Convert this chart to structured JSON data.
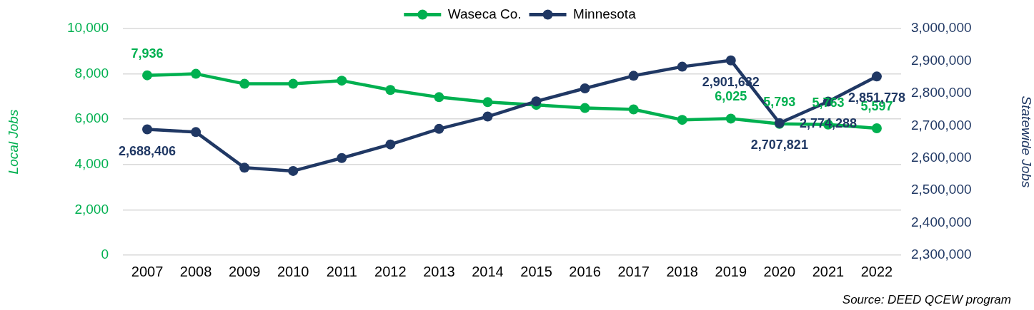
{
  "chart_data": {
    "type": "line",
    "categories": [
      "2007",
      "2008",
      "2009",
      "2010",
      "2011",
      "2012",
      "2013",
      "2014",
      "2015",
      "2016",
      "2017",
      "2018",
      "2019",
      "2020",
      "2021",
      "2022"
    ],
    "series": [
      {
        "name": "Waseca Co.",
        "color": "#00b050",
        "values": [
          7936,
          8000,
          7560,
          7560,
          7700,
          7290,
          6970,
          6750,
          6630,
          6490,
          6430,
          5970,
          6025,
          5793,
          5763,
          5597
        ],
        "value_labels": [
          "7,936",
          null,
          null,
          null,
          null,
          null,
          null,
          null,
          null,
          null,
          null,
          null,
          "6,025",
          "5,793",
          "5,763",
          "5,597"
        ]
      },
      {
        "name": "Minnesota",
        "color": "#203864",
        "axis": "y2",
        "values": [
          2688406,
          2680000,
          2570000,
          2560000,
          2600000,
          2642000,
          2690000,
          2728000,
          2775000,
          2815000,
          2854000,
          2882000,
          2901632,
          2707821,
          2774288,
          2851778
        ],
        "value_labels": [
          "2,688,406",
          null,
          null,
          null,
          null,
          null,
          null,
          null,
          null,
          null,
          null,
          null,
          "2,901,632",
          "2,707,821",
          "2,774,288",
          "2,851,778"
        ]
      }
    ],
    "ylabel": "Local Jobs",
    "y2label": "Statewide Jobs",
    "ylim": [
      0,
      10000
    ],
    "yticks": [
      0,
      {
        "value": 2000,
        "label": "2,000"
      },
      {
        "value": 4000,
        "label": "4,000"
      },
      {
        "value": 6000,
        "label": "6,000"
      },
      {
        "value": 8000,
        "label": "8,000"
      },
      {
        "value": 10000,
        "label": "10,000"
      }
    ],
    "y2lim": [
      2300000,
      3000000
    ],
    "y2ticks": [
      {
        "value": 2300000,
        "label": "2,300,000"
      },
      {
        "value": 2400000,
        "label": "2,400,000"
      },
      {
        "value": 2500000,
        "label": "2,500,000"
      },
      {
        "value": 2600000,
        "label": "2,600,000"
      },
      {
        "value": 2700000,
        "label": "2,700,000"
      },
      {
        "value": 2800000,
        "label": "2,800,000"
      },
      {
        "value": 2900000,
        "label": "2,900,000"
      },
      {
        "value": 3000000,
        "label": "3,000,000"
      }
    ],
    "annotations": [
      "Source: DEED QCEW program"
    ],
    "grid": "y",
    "legend": "top",
    "marker": "circle"
  }
}
